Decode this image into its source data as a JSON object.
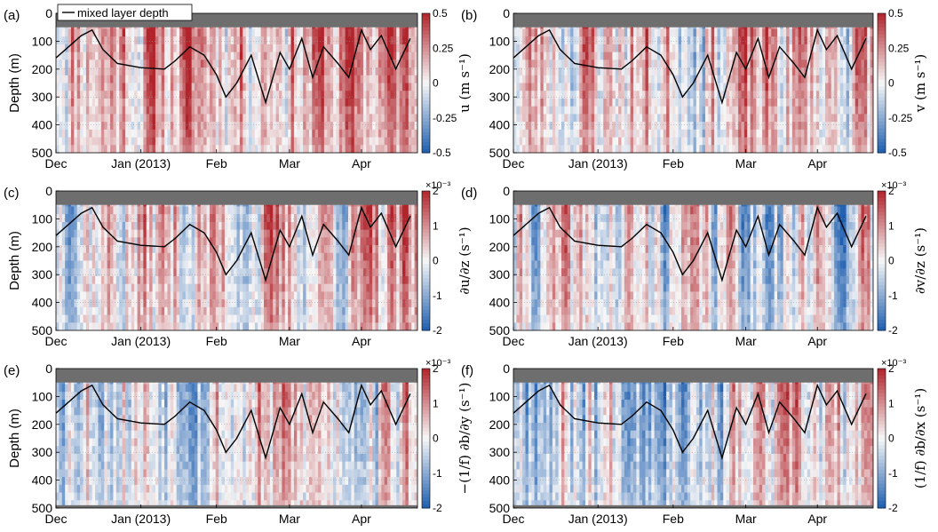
{
  "figure": {
    "legend_label": "mixed layer depth",
    "y_axis_label": "Depth (m)",
    "x_tick_labels": [
      "Dec",
      "Jan (2013)",
      "Feb",
      "Mar",
      "Apr"
    ],
    "y_tick_labels": [
      "0",
      "100",
      "200",
      "300",
      "400",
      "500"
    ],
    "colors": {
      "negative": "#1f5fb0",
      "positive": "#b0242b",
      "neutral": "#f7f7f7",
      "masked": "#6e6e6e",
      "mld_line": "#000000"
    }
  },
  "chart_data": [
    {
      "type": "heatmap",
      "panel": "(a)",
      "variable": "u",
      "colorbar_label": "u (m s⁻¹)",
      "colorbar_ticks": [
        "0.5",
        "0.25",
        "0",
        "-0.25",
        "-0.5"
      ],
      "clim": [
        -0.5,
        0.5
      ],
      "x_ticks": [
        "Dec",
        "Jan (2013)",
        "Feb",
        "Mar",
        "Apr"
      ],
      "ylim": [
        0,
        500
      ],
      "y_reversed": true,
      "ylabel": "Depth (m)",
      "seed": 11,
      "bias": 0.35,
      "surface_mask_m": 50
    },
    {
      "type": "heatmap",
      "panel": "(b)",
      "variable": "v",
      "colorbar_label": "v (m s⁻¹)",
      "colorbar_ticks": [
        "0.5",
        "0.25",
        "0",
        "-0.25",
        "-0.5"
      ],
      "clim": [
        -0.5,
        0.5
      ],
      "x_ticks": [
        "Dec",
        "Jan (2013)",
        "Feb",
        "Mar",
        "Apr"
      ],
      "ylim": [
        0,
        500
      ],
      "y_reversed": true,
      "ylabel": "Depth (m)",
      "seed": 23,
      "bias": 0.2,
      "surface_mask_m": 50
    },
    {
      "type": "heatmap",
      "panel": "(c)",
      "variable": "du/dz",
      "colorbar_label": "∂u/∂z (s⁻¹)",
      "colorbar_exponent": "×10⁻³",
      "colorbar_ticks": [
        "2",
        "1",
        "0",
        "-1",
        "-2"
      ],
      "clim": [
        -2,
        2
      ],
      "x_ticks": [
        "Dec",
        "Jan (2013)",
        "Feb",
        "Mar",
        "Apr"
      ],
      "ylim": [
        0,
        500
      ],
      "y_reversed": true,
      "ylabel": "Depth (m)",
      "seed": 37,
      "bias": 0.15,
      "surface_mask_m": 50
    },
    {
      "type": "heatmap",
      "panel": "(d)",
      "variable": "dv/dz",
      "colorbar_label": "∂v/∂z (s⁻¹)",
      "colorbar_exponent": "×10⁻³",
      "colorbar_ticks": [
        "2",
        "1",
        "0",
        "-1",
        "-2"
      ],
      "clim": [
        -2,
        2
      ],
      "x_ticks": [
        "Dec",
        "Jan (2013)",
        "Feb",
        "Mar",
        "Apr"
      ],
      "ylim": [
        0,
        500
      ],
      "y_reversed": true,
      "ylabel": "Depth (m)",
      "seed": 41,
      "bias": -0.05,
      "surface_mask_m": 50
    },
    {
      "type": "heatmap",
      "panel": "(e)",
      "variable": "-(1/f) db/dy",
      "colorbar_label": "−(1/f) ∂b/∂y (s⁻¹)",
      "colorbar_exponent": "×10⁻³",
      "colorbar_ticks": [
        "2",
        "1",
        "0",
        "-1",
        "-2"
      ],
      "clim": [
        -2,
        2
      ],
      "x_ticks": [
        "Dec",
        "Jan (2013)",
        "Feb",
        "Mar",
        "Apr"
      ],
      "ylim": [
        0,
        500
      ],
      "y_reversed": true,
      "ylabel": "Depth (m)",
      "seed": 53,
      "bias": 0.1,
      "surface_mask_m": 50,
      "bottom_mask_m": 490
    },
    {
      "type": "heatmap",
      "panel": "(f)",
      "variable": "(1/f) db/dx",
      "colorbar_label": "(1/f) ∂b/∂x (s⁻¹)",
      "colorbar_exponent": "×10⁻³",
      "colorbar_ticks": [
        "2",
        "1",
        "0",
        "-1",
        "-2"
      ],
      "clim": [
        -2,
        2
      ],
      "x_ticks": [
        "Dec",
        "Jan (2013)",
        "Feb",
        "Mar",
        "Apr"
      ],
      "ylim": [
        0,
        500
      ],
      "y_reversed": true,
      "ylabel": "Depth (m)",
      "seed": 67,
      "bias": 0.0,
      "surface_mask_m": 50,
      "bottom_mask_m": 490
    }
  ],
  "mixed_layer_depth": {
    "x": [
      "Dec 1",
      "Dec 10",
      "Dec 15",
      "Dec 20",
      "Dec 25",
      "Jan 1",
      "Jan 10",
      "Jan 15",
      "Jan 20",
      "Jan 25",
      "Feb 1",
      "Feb 5",
      "Feb 10",
      "Feb 15",
      "Feb 20",
      "Feb 25",
      "Mar 1",
      "Mar 5",
      "Mar 10",
      "Mar 15",
      "Mar 20",
      "Mar 25",
      "Apr 1",
      "Apr 5",
      "Apr 10",
      "Apr 15",
      "Apr 20"
    ],
    "depth_m": [
      160,
      80,
      60,
      130,
      180,
      195,
      200,
      170,
      120,
      150,
      220,
      300,
      250,
      150,
      320,
      140,
      200,
      90,
      230,
      120,
      180,
      230,
      60,
      130,
      80,
      200,
      90
    ]
  }
}
